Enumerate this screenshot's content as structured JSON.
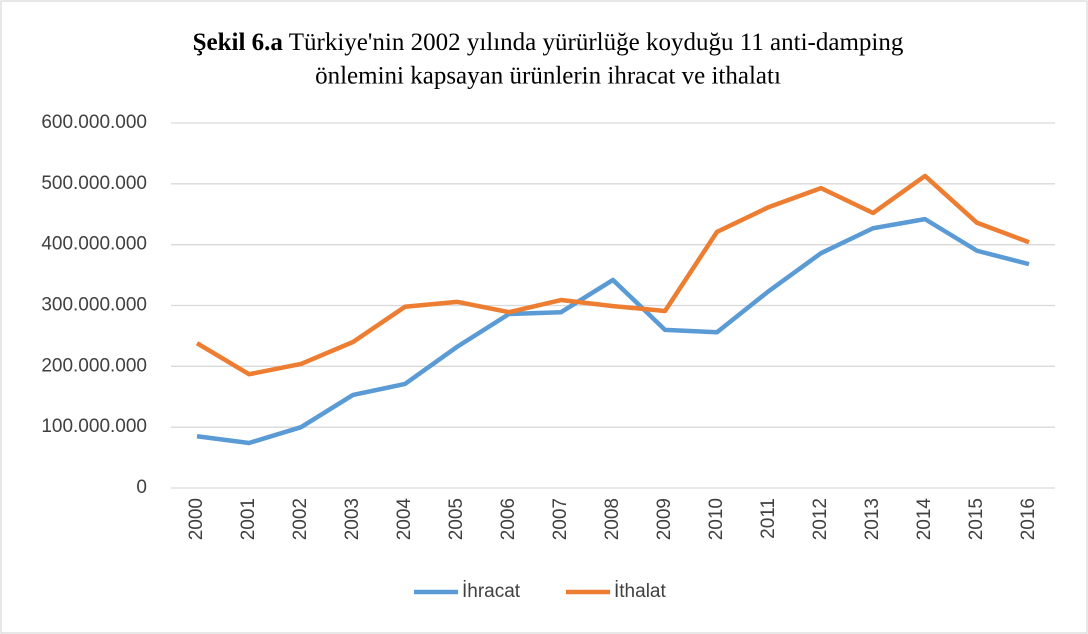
{
  "chart_data": {
    "type": "line",
    "title_prefix": "Şekil 6.a",
    "title": [
      "Türkiye'nin 2002 yılında yürürlüğe koyduğu 11 anti-damping",
      "önlemini kapsayan ürünlerin ihracat ve ithalatı"
    ],
    "categories": [
      "2000",
      "2001",
      "2002",
      "2003",
      "2004",
      "2005",
      "2006",
      "2007",
      "2008",
      "2009",
      "2010",
      "2011",
      "2012",
      "2013",
      "2014",
      "2015",
      "2016"
    ],
    "series": [
      {
        "name": "İhracat",
        "color": "#5b9bd5",
        "values": [
          85000000,
          74000000,
          100000000,
          153000000,
          171000000,
          232000000,
          286000000,
          289000000,
          342000000,
          260000000,
          256000000,
          324000000,
          386000000,
          427000000,
          442000000,
          390000000,
          368000000
        ]
      },
      {
        "name": "İthalat",
        "color": "#ed7d31",
        "values": [
          238000000,
          187000000,
          204000000,
          240000000,
          298000000,
          306000000,
          289000000,
          309000000,
          299000000,
          291000000,
          421000000,
          462000000,
          493000000,
          452000000,
          513000000,
          436000000,
          404000000
        ]
      }
    ],
    "ylim": [
      0,
      600000000
    ],
    "yticks": [
      0,
      {
        "value": 100000000,
        "label": "100.000.000"
      },
      {
        "value": 200000000,
        "label": "200.000.000"
      },
      {
        "value": 300000000,
        "label": "300.000.000"
      },
      {
        "value": 400000000,
        "label": "400.000.000"
      },
      {
        "value": 500000000,
        "label": "500.000.000"
      },
      {
        "value": 600000000,
        "label": "600.000.000"
      }
    ],
    "grid": true,
    "legend": "bottom"
  }
}
